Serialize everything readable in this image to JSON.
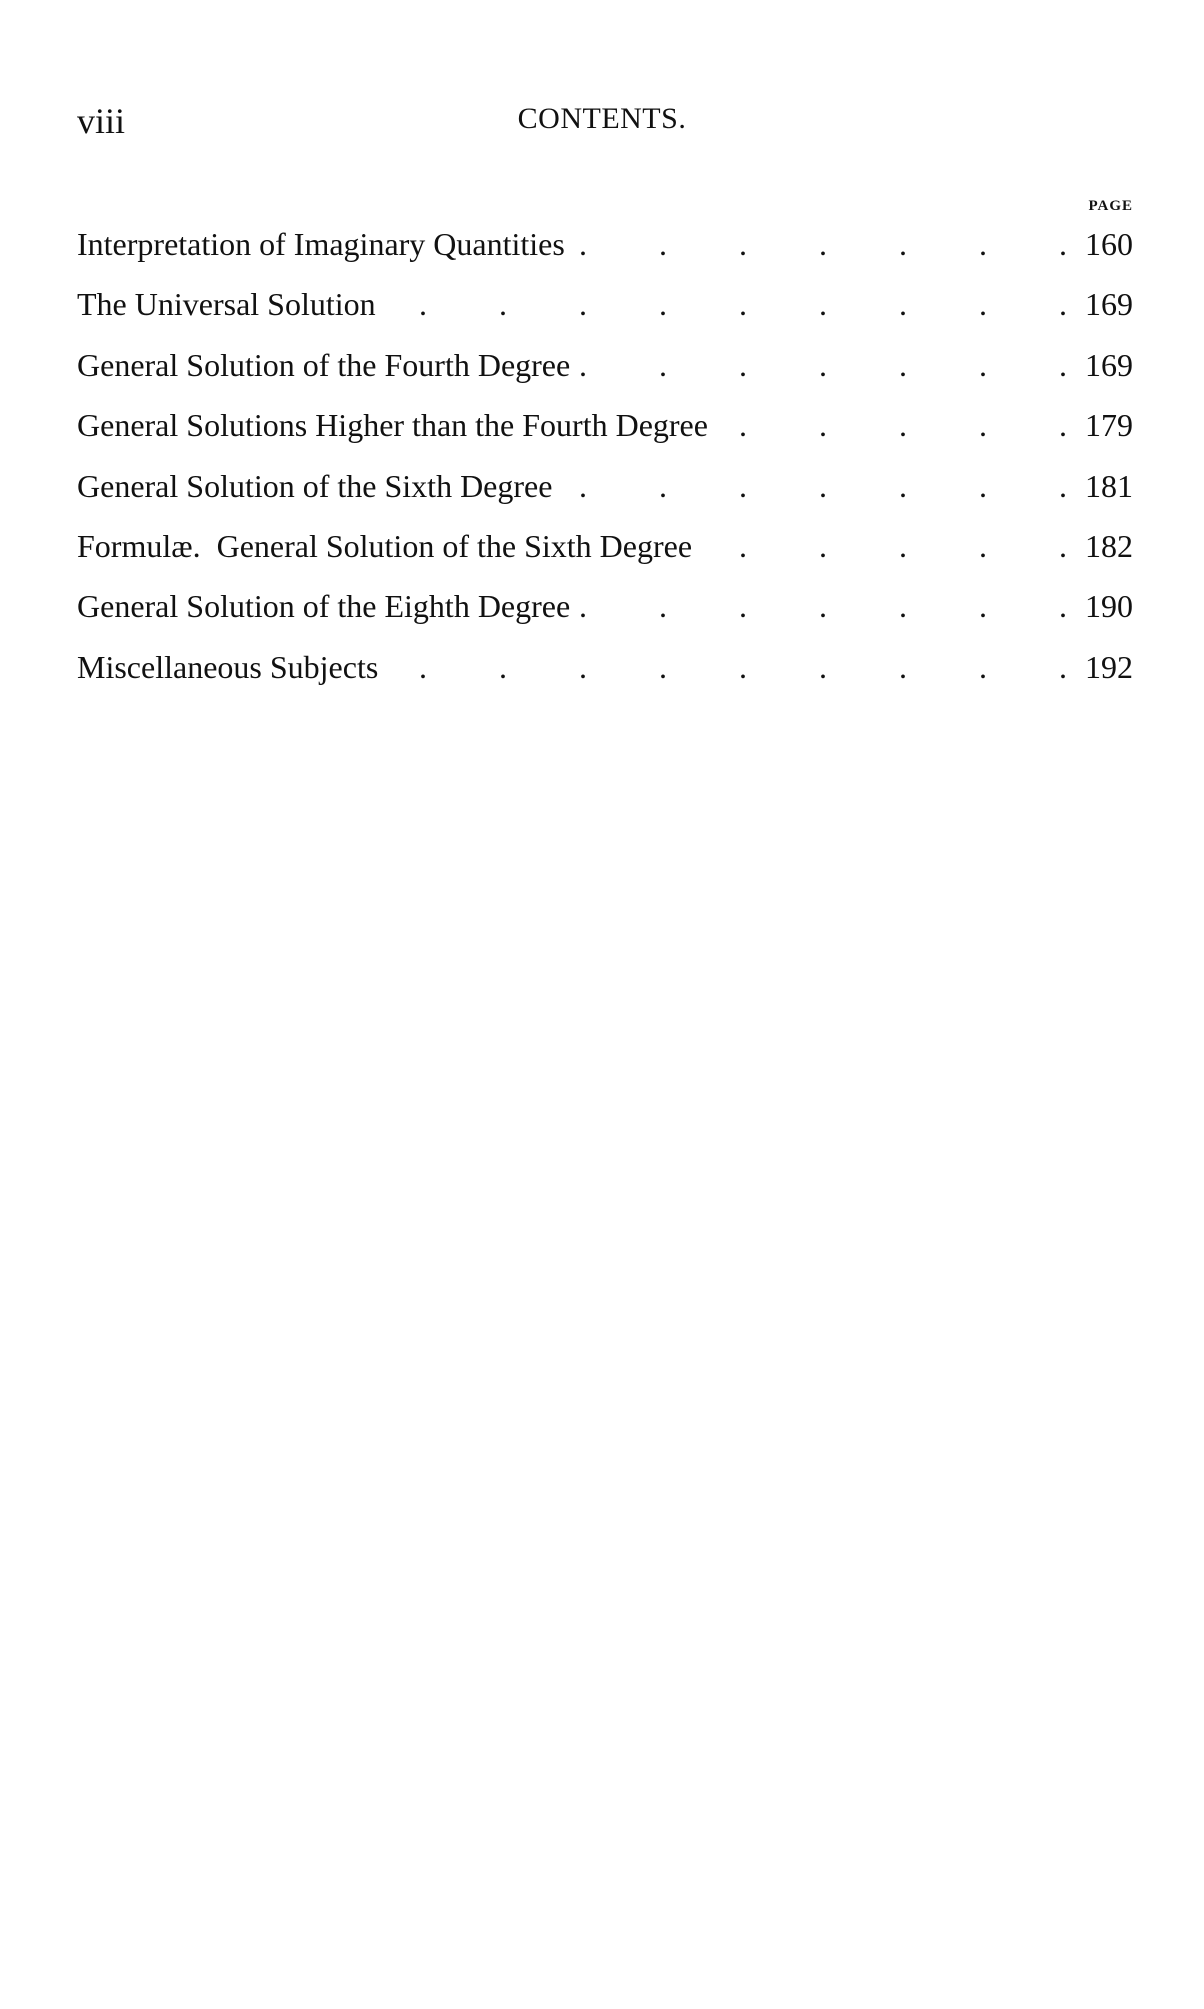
{
  "header": {
    "folio": "viii",
    "running_title": "CONTENTS.",
    "page_column_label": "PAGE"
  },
  "entries": [
    {
      "title": "Interpretation of Imaginary Quantities",
      "page": "160"
    },
    {
      "title": "The Universal Solution",
      "page": "169"
    },
    {
      "title": "General Solution of the Fourth Degree",
      "page": "169"
    },
    {
      "title": "General Solutions Higher than the Fourth Degree",
      "page": "179"
    },
    {
      "title": "General Solution of the Sixth Degree",
      "page": "181"
    },
    {
      "title": "Formulæ.  General Solution of the Sixth Degree",
      "page": "182"
    },
    {
      "title": "General Solution of the Eighth Degree",
      "page": "190"
    },
    {
      "title": "Miscellaneous Subjects",
      "page": "192"
    }
  ]
}
